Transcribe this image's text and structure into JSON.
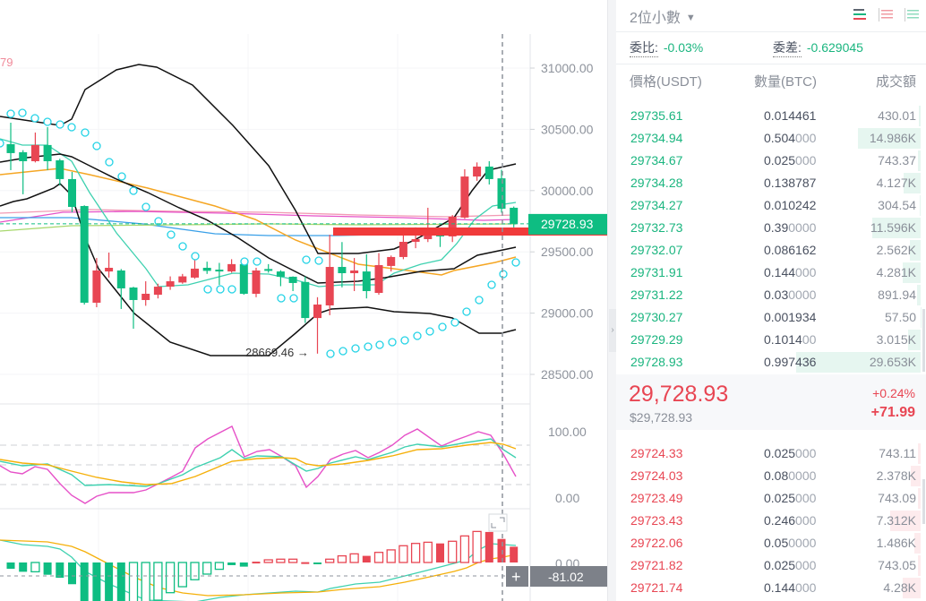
{
  "chart": {
    "price_axis": [
      "31000.00",
      "30500.00",
      "30000.00",
      "29500.00",
      "29000.00",
      "28500.00"
    ],
    "price_axis_values": [
      31000,
      30500,
      30000,
      29500,
      29000,
      28500
    ],
    "last_price_label": "29728.93",
    "last_price_value": 29728.93,
    "low_marker": "28669.46 →",
    "partial_label": "79",
    "kdj_axis": [
      "100.00",
      "0.00"
    ],
    "macd_axis": [
      "0.00"
    ],
    "crosshair_value": "-81.02",
    "crosshair_plus": "+",
    "colors": {
      "up": "#e84653",
      "down": "#0ebd82",
      "boll": "#111111",
      "ma_short": "#3fd1b0",
      "ma_long": "#f5a623",
      "psar": "#24d3e6",
      "k": "#e651c8",
      "d": "#3fd1b0",
      "j": "#f5b00a"
    }
  },
  "chart_data": {
    "type": "candlestick",
    "candles": [
      [
        30379,
        30554,
        30167,
        30306
      ],
      [
        30313,
        30330,
        29970,
        30240
      ],
      [
        30240,
        30474,
        30230,
        30372
      ],
      [
        30372,
        30518,
        30167,
        30240
      ],
      [
        30247,
        30260,
        30042,
        30094
      ],
      [
        30094,
        30152,
        29823,
        29867
      ],
      [
        29874,
        29880,
        29070,
        29085
      ],
      [
        29085,
        29450,
        29048,
        29348
      ],
      [
        29340,
        29494,
        29290,
        29370
      ],
      [
        29348,
        29360,
        29034,
        29202
      ],
      [
        29209,
        29215,
        28873,
        29107
      ],
      [
        29107,
        29260,
        29060,
        29158
      ],
      [
        29150,
        29240,
        29120,
        29216
      ],
      [
        29216,
        29300,
        29190,
        29260
      ],
      [
        29250,
        29320,
        29240,
        29300
      ],
      [
        29290,
        29436,
        29280,
        29363
      ],
      [
        29370,
        29420,
        29320,
        29345
      ],
      [
        29355,
        29410,
        29230,
        29340
      ],
      [
        29340,
        29440,
        29330,
        29400
      ],
      [
        29400,
        29410,
        29150,
        29158
      ],
      [
        29158,
        29370,
        29130,
        29348
      ],
      [
        29360,
        29400,
        29330,
        29345
      ],
      [
        29340,
        29350,
        29220,
        29297
      ],
      [
        29297,
        29300,
        29180,
        29246
      ],
      [
        29254,
        29300,
        28920,
        28960
      ],
      [
        28960,
        29130,
        28669.46,
        29070
      ],
      [
        29063,
        29640,
        28983,
        29377
      ],
      [
        29377,
        29580,
        29210,
        29326
      ],
      [
        29326,
        29450,
        29180,
        29348
      ],
      [
        29340,
        29480,
        29120,
        29180
      ],
      [
        29165,
        29490,
        29150,
        29392
      ],
      [
        29385,
        29470,
        29340,
        29458
      ],
      [
        29458,
        29700,
        29440,
        29582
      ],
      [
        29582,
        29700,
        29530,
        29604
      ],
      [
        29604,
        29860,
        29580,
        29677
      ],
      [
        29677,
        29690,
        29540,
        29626
      ],
      [
        29626,
        29800,
        29580,
        29787
      ],
      [
        29780,
        30174,
        29770,
        30115
      ],
      [
        30115,
        30230,
        30080,
        30196
      ],
      [
        30196,
        30240,
        30050,
        30094
      ],
      [
        30100,
        30170,
        29820,
        29852
      ],
      [
        29860,
        29870,
        29700,
        29728.93
      ]
    ],
    "candle_fields": [
      "open",
      "high",
      "low",
      "close"
    ],
    "macd_hist": [
      -38,
      -56,
      -56,
      -74,
      -92,
      -131,
      -260,
      -260,
      -260,
      -260,
      -260,
      -260,
      -227,
      -182,
      -146,
      -104,
      -70,
      -41,
      -16,
      -25,
      5,
      16,
      20,
      20,
      2,
      -7,
      20,
      40,
      52,
      40,
      61,
      76,
      101,
      115,
      122,
      115,
      128,
      160,
      187,
      184,
      142,
      95
    ],
    "macd_hist_filled": [
      1,
      1,
      0,
      1,
      1,
      1,
      1,
      1,
      1,
      1,
      0,
      0,
      0,
      0,
      0,
      0,
      0,
      0,
      1,
      1,
      1,
      0,
      0,
      0,
      1,
      1,
      0,
      0,
      0,
      1,
      0,
      0,
      0,
      0,
      0,
      1,
      0,
      0,
      0,
      1,
      1,
      1
    ]
  },
  "orderbook": {
    "precision": "2位小數",
    "ratio_label": "委比:",
    "ratio_value": "-0.03%",
    "diff_label": "委差:",
    "diff_value": "-0.629045",
    "headers": {
      "price": "價格(USDT)",
      "qty": "數量(BTC)",
      "total": "成交額"
    },
    "asks": [
      {
        "price": "29735.61",
        "qty_main": "0.014461",
        "qty_tail": "",
        "total": "430.01",
        "depth": 1.5
      },
      {
        "price": "29734.94",
        "qty_main": "0.504",
        "qty_tail": "000",
        "total": "14.986K",
        "depth": 50.5
      },
      {
        "price": "29734.67",
        "qty_main": "0.025",
        "qty_tail": "000",
        "total": "743.37",
        "depth": 2.5
      },
      {
        "price": "29734.28",
        "qty_main": "0.138787",
        "qty_tail": "",
        "total": "4.127K",
        "depth": 13.9
      },
      {
        "price": "29734.27",
        "qty_main": "0.010242",
        "qty_tail": "",
        "total": "304.54",
        "depth": 1
      },
      {
        "price": "29732.73",
        "qty_main": "0.39",
        "qty_tail": "0000",
        "total": "11.596K",
        "depth": 39.1
      },
      {
        "price": "29732.07",
        "qty_main": "0.086162",
        "qty_tail": "",
        "total": "2.562K",
        "depth": 8.6
      },
      {
        "price": "29731.91",
        "qty_main": "0.144",
        "qty_tail": "000",
        "total": "4.281K",
        "depth": 14.4
      },
      {
        "price": "29731.22",
        "qty_main": "0.03",
        "qty_tail": "0000",
        "total": "891.94",
        "depth": 3
      },
      {
        "price": "29730.27",
        "qty_main": "0.001934",
        "qty_tail": "",
        "total": "57.50",
        "depth": 0.2
      },
      {
        "price": "29729.29",
        "qty_main": "0.1014",
        "qty_tail": "00",
        "total": "3.015K",
        "depth": 10.2
      },
      {
        "price": "29728.93",
        "qty_main": "0.997436",
        "qty_tail": "",
        "total": "29.653K",
        "depth": 100
      }
    ],
    "last": {
      "price": "29,728.93",
      "usd": "$29,728.93",
      "pct": "+0.24%",
      "change": "+71.99"
    },
    "bids": [
      {
        "price": "29724.33",
        "qty_main": "0.025",
        "qty_tail": "000",
        "total": "743.11",
        "depth": 2.5
      },
      {
        "price": "29724.03",
        "qty_main": "0.08",
        "qty_tail": "0000",
        "total": "2.378K",
        "depth": 8
      },
      {
        "price": "29723.49",
        "qty_main": "0.025",
        "qty_tail": "000",
        "total": "743.09",
        "depth": 2.5
      },
      {
        "price": "29723.43",
        "qty_main": "0.246",
        "qty_tail": "000",
        "total": "7.312K",
        "depth": 24.7
      },
      {
        "price": "29722.06",
        "qty_main": "0.05",
        "qty_tail": "0000",
        "total": "1.486K",
        "depth": 5
      },
      {
        "price": "29721.82",
        "qty_main": "0.025",
        "qty_tail": "000",
        "total": "743.05",
        "depth": 2.5
      },
      {
        "price": "29721.74",
        "qty_main": "0.144",
        "qty_tail": "000",
        "total": "4.28K",
        "depth": 14.4
      }
    ]
  }
}
